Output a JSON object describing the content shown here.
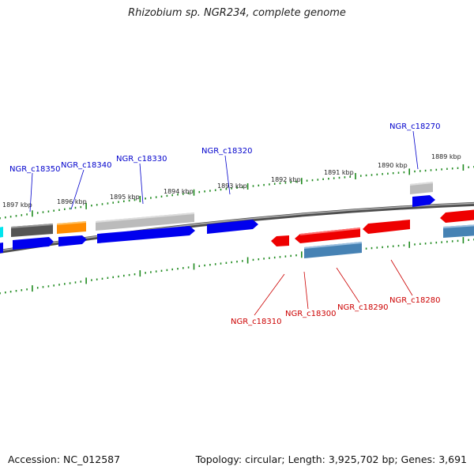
{
  "header": {
    "title": "Rhizobium sp. NGR234, complete genome"
  },
  "footer": {
    "accession": "Accession: NC_012587",
    "topology": "Topology: circular; Length: 3,925,702 bp; Genes: 3,691"
  },
  "scale": {
    "labels": [
      "1897 kbp",
      "1896 kbp",
      "1895 kbp",
      "1894 kbp",
      "1893 kbp",
      "1892 kbp",
      "1891 kbp",
      "1890 kbp",
      "1889 kbp"
    ]
  },
  "genes_top": [
    {
      "name": "NGR_c18350",
      "color": "#0000cc"
    },
    {
      "name": "NGR_c18340",
      "color": "#0000cc"
    },
    {
      "name": "NGR_c18330",
      "color": "#0000cc"
    },
    {
      "name": "NGR_c18320",
      "color": "#0000cc"
    },
    {
      "name": "NGR_c18270",
      "color": "#0000cc"
    }
  ],
  "genes_bottom": [
    {
      "name": "NGR_c18310",
      "color": "#cc0000"
    },
    {
      "name": "NGR_c18300",
      "color": "#cc0000"
    },
    {
      "name": "NGR_c18290",
      "color": "#cc0000"
    },
    {
      "name": "NGR_c18280",
      "color": "#cc0000"
    }
  ],
  "colors": {
    "backbone": "#7a7a7a",
    "tick": "#1f8a1f",
    "blue_gene": "#0000ee",
    "red_gene": "#ee0000",
    "gray_dark": "#555555",
    "gray_light": "#bbbbbb",
    "orange": "#ff8c00",
    "steel_blue": "#4682b4",
    "cyan": "#00e5ee"
  }
}
